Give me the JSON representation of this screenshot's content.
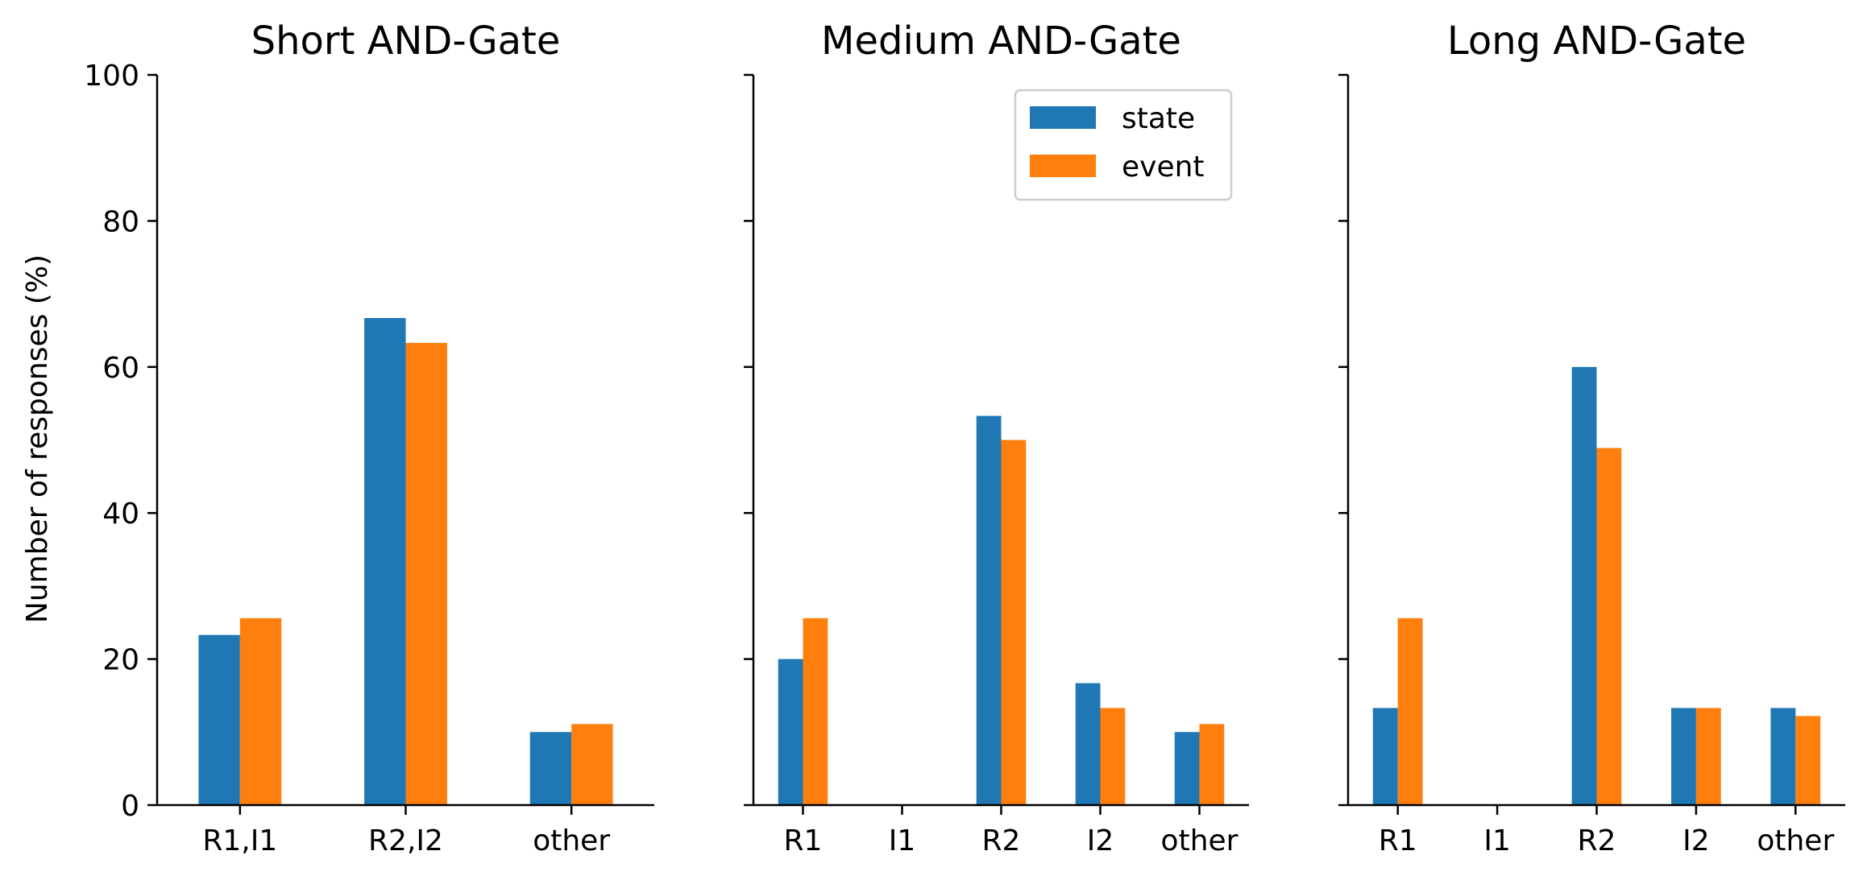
{
  "figure": {
    "ylabel": "Number of responses (%)"
  },
  "chart_data": [
    {
      "type": "bar",
      "title": "Short AND-Gate",
      "categories": [
        "R1,I1",
        "R2,I2",
        "other"
      ],
      "series": [
        {
          "name": "state",
          "values": [
            23.3,
            66.7,
            10.0
          ]
        },
        {
          "name": "event",
          "values": [
            25.6,
            63.3,
            11.1
          ]
        }
      ],
      "ylabel": "Number of responses (%)",
      "ylim": [
        0,
        100
      ],
      "yticks": [
        0,
        20,
        40,
        60,
        80,
        100
      ],
      "grid": false,
      "legend": null
    },
    {
      "type": "bar",
      "title": "Medium AND-Gate",
      "categories": [
        "R1",
        "I1",
        "R2",
        "I2",
        "other"
      ],
      "series": [
        {
          "name": "state",
          "values": [
            20.0,
            0,
            53.3,
            16.7,
            10.0
          ]
        },
        {
          "name": "event",
          "values": [
            25.6,
            0,
            50.0,
            13.3,
            11.1
          ]
        }
      ],
      "ylim": [
        0,
        100
      ],
      "yticks": [
        0,
        20,
        40,
        60,
        80,
        100
      ],
      "grid": false,
      "legend": "top-right"
    },
    {
      "type": "bar",
      "title": "Long AND-Gate",
      "categories": [
        "R1",
        "I1",
        "R2",
        "I2",
        "other"
      ],
      "series": [
        {
          "name": "state",
          "values": [
            13.3,
            0,
            60.0,
            13.3,
            13.3
          ]
        },
        {
          "name": "event",
          "values": [
            25.6,
            0,
            48.9,
            13.3,
            12.2
          ]
        }
      ],
      "ylim": [
        0,
        100
      ],
      "yticks": [
        0,
        20,
        40,
        60,
        80,
        100
      ],
      "grid": false,
      "legend": null
    }
  ],
  "colors": {
    "state": "#1f77b4",
    "event": "#ff7f0e",
    "axis": "#000000",
    "legend_border": "#cccccc"
  }
}
